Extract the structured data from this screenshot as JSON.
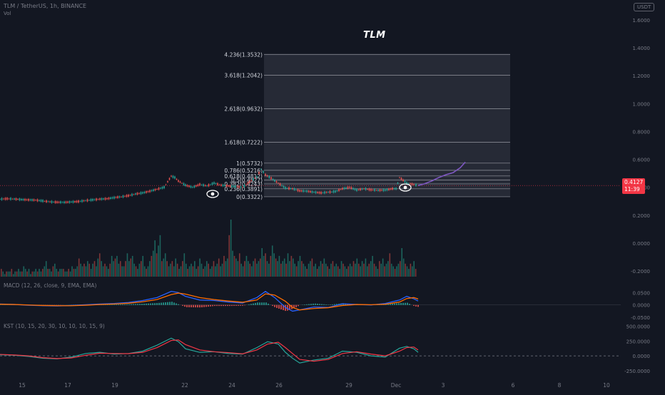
{
  "header": {
    "symbol": "TLM / TetherUS, 1h, BINANCE",
    "vol_label": "Vol",
    "currency_badge": "USDT",
    "chart_title": "TLM"
  },
  "price_tag": {
    "price": "0.4127",
    "countdown": "11:39"
  },
  "colors": {
    "background": "#131722",
    "up": "#26a69a",
    "down": "#ef5350",
    "projection": "#7e57c2",
    "macd_line": "#2962ff",
    "signal_line": "#ff6d00",
    "kst_line": "#26a69a",
    "kst_signal": "#f23645",
    "fib_box": "#2a2e39",
    "fib_line": "#9598a1",
    "price_line": "#f23645"
  },
  "icons": [
    "eye-icon",
    "eye-icon"
  ],
  "chart_data": [
    {
      "type": "line",
      "pane": "price",
      "title": "TLM",
      "series": [
        {
          "x": [
            0,
            10,
            20,
            30,
            40,
            50,
            60,
            70,
            80,
            90,
            100,
            110,
            120,
            130,
            140,
            150,
            160,
            170,
            180,
            190,
            200,
            210,
            220,
            230,
            235,
            240,
            245,
            250,
            255,
            260,
            270,
            280,
            290,
            300,
            310,
            320,
            330,
            340,
            350,
            360,
            366,
            372,
            380,
            390,
            400,
            410,
            420,
            430,
            440,
            450,
            460,
            470,
            480,
            490,
            500,
            510,
            520,
            530,
            540,
            550,
            555,
            560,
            565,
            570,
            575,
            580,
            586
          ],
          "values": [
            0.315,
            0.318,
            0.316,
            0.312,
            0.31,
            0.308,
            0.302,
            0.296,
            0.293,
            0.292,
            0.295,
            0.298,
            0.305,
            0.31,
            0.315,
            0.318,
            0.326,
            0.332,
            0.34,
            0.352,
            0.36,
            0.372,
            0.386,
            0.4,
            0.44,
            0.48,
            0.47,
            0.445,
            0.43,
            0.415,
            0.4,
            0.42,
            0.41,
            0.43,
            0.415,
            0.41,
            0.405,
            0.4,
            0.44,
            0.475,
            0.53,
            0.49,
            0.465,
            0.43,
            0.395,
            0.39,
            0.375,
            0.372,
            0.365,
            0.36,
            0.365,
            0.37,
            0.39,
            0.4,
            0.38,
            0.39,
            0.382,
            0.378,
            0.38,
            0.39,
            0.39,
            0.47,
            0.45,
            0.43,
            0.425,
            0.42,
            0.4127
          ]
        },
        {
          "name": "projection",
          "x": [
            586,
            595,
            605,
            615,
            625,
            635,
            645,
            652
          ],
          "values": [
            0.4127,
            0.425,
            0.445,
            0.47,
            0.49,
            0.505,
            0.54,
            0.58
          ]
        }
      ],
      "fib_levels": [
        {
          "label": "0(0.3322)",
          "value": 0.3322
        },
        {
          "label": "0.236(0.3891)",
          "value": 0.3891
        },
        {
          "label": "0.382(0.4243)",
          "value": 0.4243
        },
        {
          "label": "0.5(0.4527)",
          "value": 0.4527
        },
        {
          "label": "0.618(0.4812)",
          "value": 0.4812
        },
        {
          "label": "0.786(0.5216)",
          "value": 0.5216
        },
        {
          "label": "1(0.5732)",
          "value": 0.5732
        },
        {
          "label": "1.618(0.7222)",
          "value": 0.7222
        },
        {
          "label": "2.618(0.9632)",
          "value": 0.9632
        },
        {
          "label": "3.618(1.2042)",
          "value": 1.2042
        },
        {
          "label": "4.236(1.3532)",
          "value": 1.3532
        }
      ],
      "y_ticks": [
        "1.6000",
        "1.4000",
        "1.2000",
        "1.0000",
        "0.8000",
        "0.6000",
        "0.4000",
        "0.2000",
        "0.0000",
        "-0.2000"
      ],
      "ylim": [
        -0.2,
        1.6
      ],
      "x_ticks": [
        "15",
        "17",
        "19",
        "22",
        "24",
        "26",
        "29",
        "Dec",
        "3",
        "6",
        "8",
        "10"
      ]
    },
    {
      "type": "bar",
      "pane": "volume",
      "label": "Vol",
      "values": [
        3,
        2,
        1,
        2,
        2,
        2,
        3,
        1,
        2,
        2,
        3,
        2,
        2,
        4,
        3,
        2,
        3,
        1,
        2,
        2,
        3,
        2,
        3,
        2,
        3,
        4,
        6,
        3,
        3,
        2,
        4,
        5,
        3,
        2,
        3,
        3,
        3,
        2,
        2,
        3,
        2,
        4,
        3,
        3,
        4,
        7,
        5,
        4,
        5,
        4,
        6,
        5,
        3,
        5,
        6,
        4,
        7,
        9,
        6,
        4,
        5,
        4,
        3,
        5,
        8,
        6,
        7,
        8,
        5,
        6,
        4,
        4,
        6,
        9,
        6,
        7,
        8,
        5,
        4,
        3,
        5,
        6,
        8,
        4,
        3,
        4,
        6,
        8,
        10,
        14,
        9,
        12,
        16,
        6,
        7,
        9,
        6,
        4,
        5,
        6,
        4,
        7,
        5,
        3,
        4,
        6,
        9,
        5,
        3,
        4,
        5,
        4,
        6,
        3,
        4,
        7,
        5,
        3,
        4,
        6,
        5,
        3,
        4,
        6,
        4,
        5,
        7,
        4,
        5,
        8,
        6,
        7,
        16,
        22,
        10,
        8,
        7,
        6,
        9,
        5,
        4,
        6,
        8,
        6,
        5,
        4,
        6,
        7,
        5,
        6,
        7,
        11,
        8,
        9,
        6,
        5,
        8,
        12,
        9,
        7,
        6,
        8,
        5,
        6,
        7,
        5,
        9,
        6,
        8,
        7,
        5,
        4,
        6,
        8,
        6,
        5,
        4,
        3,
        5,
        6,
        7,
        4,
        5,
        3,
        4,
        6,
        5,
        7,
        5,
        4,
        3,
        5,
        6,
        4,
        5,
        4,
        3,
        6,
        5,
        4,
        3,
        4,
        5,
        4,
        6,
        5,
        7,
        5,
        4,
        6,
        5,
        7,
        4,
        5,
        6,
        8,
        5,
        4,
        3,
        6,
        5,
        7,
        4,
        5,
        6,
        9,
        5,
        4,
        3,
        4,
        5,
        6,
        11,
        7,
        5,
        4,
        3,
        5,
        4,
        6,
        3
      ]
    },
    {
      "type": "line",
      "pane": "macd",
      "label": "MACD (12, 26, close, 9, EMA, EMA)",
      "y_ticks": [
        "0.0500",
        "0.0000",
        "-0.0500"
      ],
      "ylim": [
        -0.07,
        0.08
      ],
      "series": [
        {
          "name": "MACD",
          "x": [
            0,
            20,
            40,
            60,
            80,
            100,
            120,
            140,
            160,
            180,
            200,
            220,
            240,
            250,
            260,
            280,
            300,
            320,
            340,
            360,
            372,
            385,
            400,
            410,
            420,
            440,
            460,
            480,
            500,
            520,
            540,
            560,
            570,
            580,
            586
          ],
          "values": [
            0.004,
            0.002,
            -0.001,
            -0.003,
            -0.004,
            -0.002,
            0.001,
            0.004,
            0.006,
            0.01,
            0.018,
            0.03,
            0.055,
            0.05,
            0.035,
            0.02,
            0.018,
            0.012,
            0.008,
            0.03,
            0.055,
            0.03,
            -0.01,
            -0.025,
            -0.02,
            -0.008,
            -0.01,
            0.005,
            0.002,
            0.0,
            0.006,
            0.02,
            0.035,
            0.025,
            0.016
          ]
        },
        {
          "name": "Signal",
          "x": [
            0,
            20,
            40,
            60,
            80,
            100,
            120,
            140,
            160,
            180,
            200,
            220,
            240,
            250,
            260,
            280,
            300,
            320,
            340,
            360,
            372,
            385,
            400,
            410,
            420,
            440,
            460,
            480,
            500,
            520,
            540,
            560,
            570,
            580,
            586
          ],
          "values": [
            0.003,
            0.002,
            0.0,
            -0.002,
            -0.003,
            -0.003,
            -0.001,
            0.002,
            0.004,
            0.007,
            0.013,
            0.022,
            0.042,
            0.048,
            0.044,
            0.03,
            0.022,
            0.016,
            0.011,
            0.02,
            0.045,
            0.04,
            0.015,
            -0.01,
            -0.02,
            -0.014,
            -0.011,
            -0.002,
            0.002,
            0.001,
            0.003,
            0.012,
            0.026,
            0.03,
            0.024
          ]
        }
      ]
    },
    {
      "type": "line",
      "pane": "kst",
      "label": "KST (10, 15, 20, 30, 10, 10, 10, 15, 9)",
      "y_ticks": [
        "500.0000",
        "250.0000",
        "0.0000",
        "-250.0000"
      ],
      "ylim": [
        -300,
        520
      ],
      "series": [
        {
          "name": "KST",
          "x": [
            0,
            20,
            40,
            60,
            80,
            100,
            120,
            140,
            160,
            180,
            200,
            220,
            240,
            250,
            260,
            280,
            300,
            320,
            340,
            360,
            375,
            390,
            400,
            410,
            420,
            440,
            460,
            480,
            500,
            520,
            540,
            560,
            570,
            580,
            586
          ],
          "values": [
            20,
            10,
            -10,
            -40,
            -50,
            -20,
            40,
            60,
            30,
            40,
            80,
            180,
            300,
            240,
            120,
            60,
            70,
            40,
            30,
            140,
            240,
            200,
            60,
            -40,
            -120,
            -70,
            -40,
            80,
            60,
            0,
            -20,
            130,
            160,
            120,
            60
          ]
        },
        {
          "name": "Signal",
          "x": [
            0,
            20,
            40,
            60,
            80,
            100,
            120,
            140,
            160,
            180,
            200,
            220,
            240,
            250,
            260,
            280,
            300,
            320,
            340,
            360,
            375,
            390,
            400,
            410,
            420,
            440,
            460,
            480,
            500,
            520,
            540,
            560,
            570,
            580,
            586
          ],
          "values": [
            25,
            15,
            0,
            -30,
            -45,
            -35,
            10,
            45,
            40,
            38,
            60,
            140,
            260,
            270,
            190,
            100,
            70,
            55,
            35,
            100,
            200,
            230,
            140,
            40,
            -60,
            -90,
            -60,
            40,
            70,
            30,
            0,
            80,
            140,
            150,
            100
          ]
        }
      ]
    }
  ]
}
